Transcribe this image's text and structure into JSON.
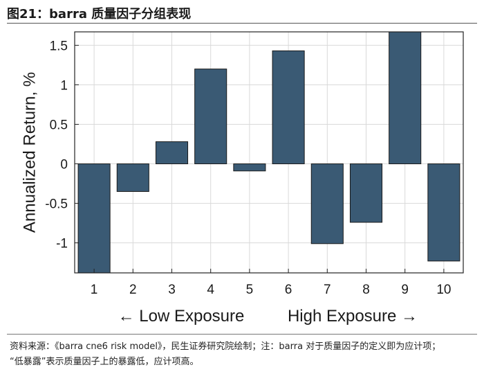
{
  "title": "图21：barra 质量因子分组表现",
  "source_line1": "资料来源：《barra cne6 risk model》，民生证券研究院绘制；注：barra 对于质量因子的定义即为应计项；",
  "source_line2": "“低暴露”表示质量因子上的暴露低，应计项高。",
  "chart_data": {
    "type": "bar",
    "categories": [
      "1",
      "2",
      "3",
      "4",
      "5",
      "6",
      "7",
      "8",
      "9",
      "10"
    ],
    "values": [
      -1.38,
      -0.35,
      0.28,
      1.2,
      -0.09,
      1.43,
      -1.01,
      -0.74,
      1.67,
      -1.23
    ],
    "ylabel": "Annualized Return, %",
    "xlabel_left": "← Low Exposure",
    "xlabel_right": "High Exposure →",
    "ylim": [
      -1.38,
      1.67
    ],
    "yticks": [
      -1,
      -0.5,
      0,
      0.5,
      1,
      1.5
    ],
    "ytick_labels": [
      "-1",
      "-0.5",
      "0",
      "0.5",
      "1",
      "1.5"
    ],
    "grid": true,
    "bar_color": "#3a5a74"
  }
}
